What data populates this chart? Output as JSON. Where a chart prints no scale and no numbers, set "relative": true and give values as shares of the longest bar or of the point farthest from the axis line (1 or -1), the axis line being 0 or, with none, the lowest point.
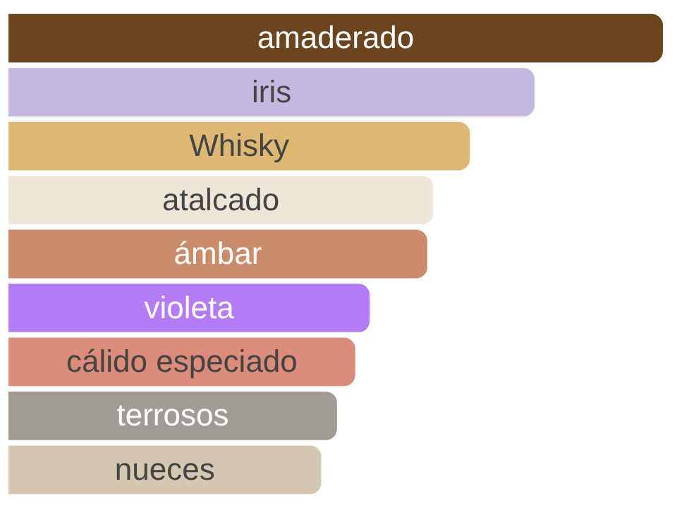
{
  "chart_data": {
    "type": "bar",
    "orientation": "horizontal",
    "relative": true,
    "categories": [
      "amaderado",
      "iris",
      "Whisky",
      "atalcado",
      "ámbar",
      "violeta",
      "cálido especiado",
      "terrosos",
      "nueces"
    ],
    "values": [
      1,
      0.804,
      0.705,
      0.649,
      0.64,
      0.552,
      0.53,
      0.502,
      0.478
    ],
    "colors": [
      "#6b4420",
      "#c4b8de",
      "#dcb874",
      "#efe6da",
      "#c98b6a",
      "#b57bf5",
      "#dc8c7a",
      "#a09c94",
      "#d5c8b1"
    ],
    "legend": false
  }
}
